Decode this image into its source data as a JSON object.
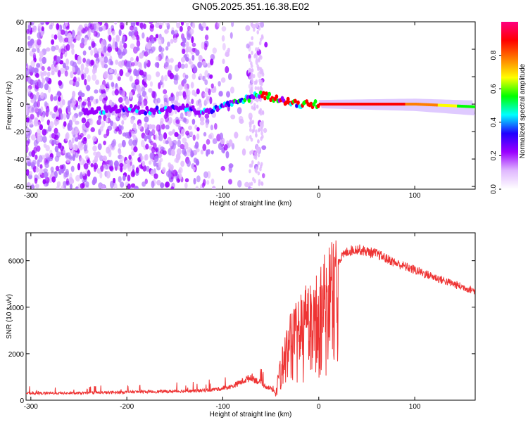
{
  "title": "GN05.2025.351.16.38.E02",
  "chart_data": [
    {
      "type": "heatmap",
      "xlabel": "Height of straight line (km)",
      "ylabel": "Frequency (Hz)",
      "xlim": [
        -305,
        163
      ],
      "ylim": [
        -62,
        60
      ],
      "xticks": [
        -300,
        -200,
        -100,
        0,
        100
      ],
      "yticks": [
        -60,
        -40,
        -20,
        0,
        20,
        40,
        60
      ],
      "ridge": {
        "x": [
          -240,
          -220,
          -200,
          -180,
          -160,
          -140,
          -120,
          -100,
          -80,
          -60,
          -40,
          -20,
          0,
          50,
          100,
          163
        ],
        "y": [
          -6,
          -4,
          -3,
          -5,
          -4,
          -2,
          -6,
          -2,
          3,
          7,
          3,
          0,
          0,
          0,
          0,
          -2
        ]
      },
      "colorbar": {
        "label": "Normalized spectral amplitude",
        "range": [
          0,
          1
        ],
        "ticks": [
          "0.0",
          "0.2",
          "0.4",
          "0.6",
          "0.8"
        ],
        "colormap": [
          "#ffffff",
          "#e0b8ff",
          "#9b00ff",
          "#2000ff",
          "#00ffff",
          "#00ff00",
          "#ffff00",
          "#ff7f00",
          "#ff0000",
          "#ff0080"
        ]
      },
      "series_color": "#8a2be2",
      "grid": false
    },
    {
      "type": "line",
      "xlabel": "Height of straight line (km)",
      "ylabel": "SNR (10 * v/v)",
      "xlim": [
        -305,
        163
      ],
      "ylim": [
        0,
        7200
      ],
      "xticks": [
        -300,
        -200,
        -100,
        0,
        100
      ],
      "yticks": [
        0,
        2000,
        4000,
        6000
      ],
      "color": "#ee3333",
      "envelope": {
        "x": [
          -305,
          -250,
          -200,
          -150,
          -120,
          -100,
          -90,
          -80,
          -70,
          -60,
          -50,
          -45,
          -40,
          -30,
          -20,
          -10,
          0,
          10,
          20,
          30,
          40,
          60,
          80,
          100,
          120,
          140,
          163
        ],
        "y": [
          300,
          300,
          350,
          380,
          420,
          500,
          600,
          800,
          1000,
          700,
          500,
          300,
          1500,
          3000,
          3500,
          4200,
          4500,
          5200,
          6000,
          6400,
          6500,
          6300,
          5900,
          5600,
          5300,
          5000,
          4700
        ]
      },
      "grid": false
    }
  ]
}
